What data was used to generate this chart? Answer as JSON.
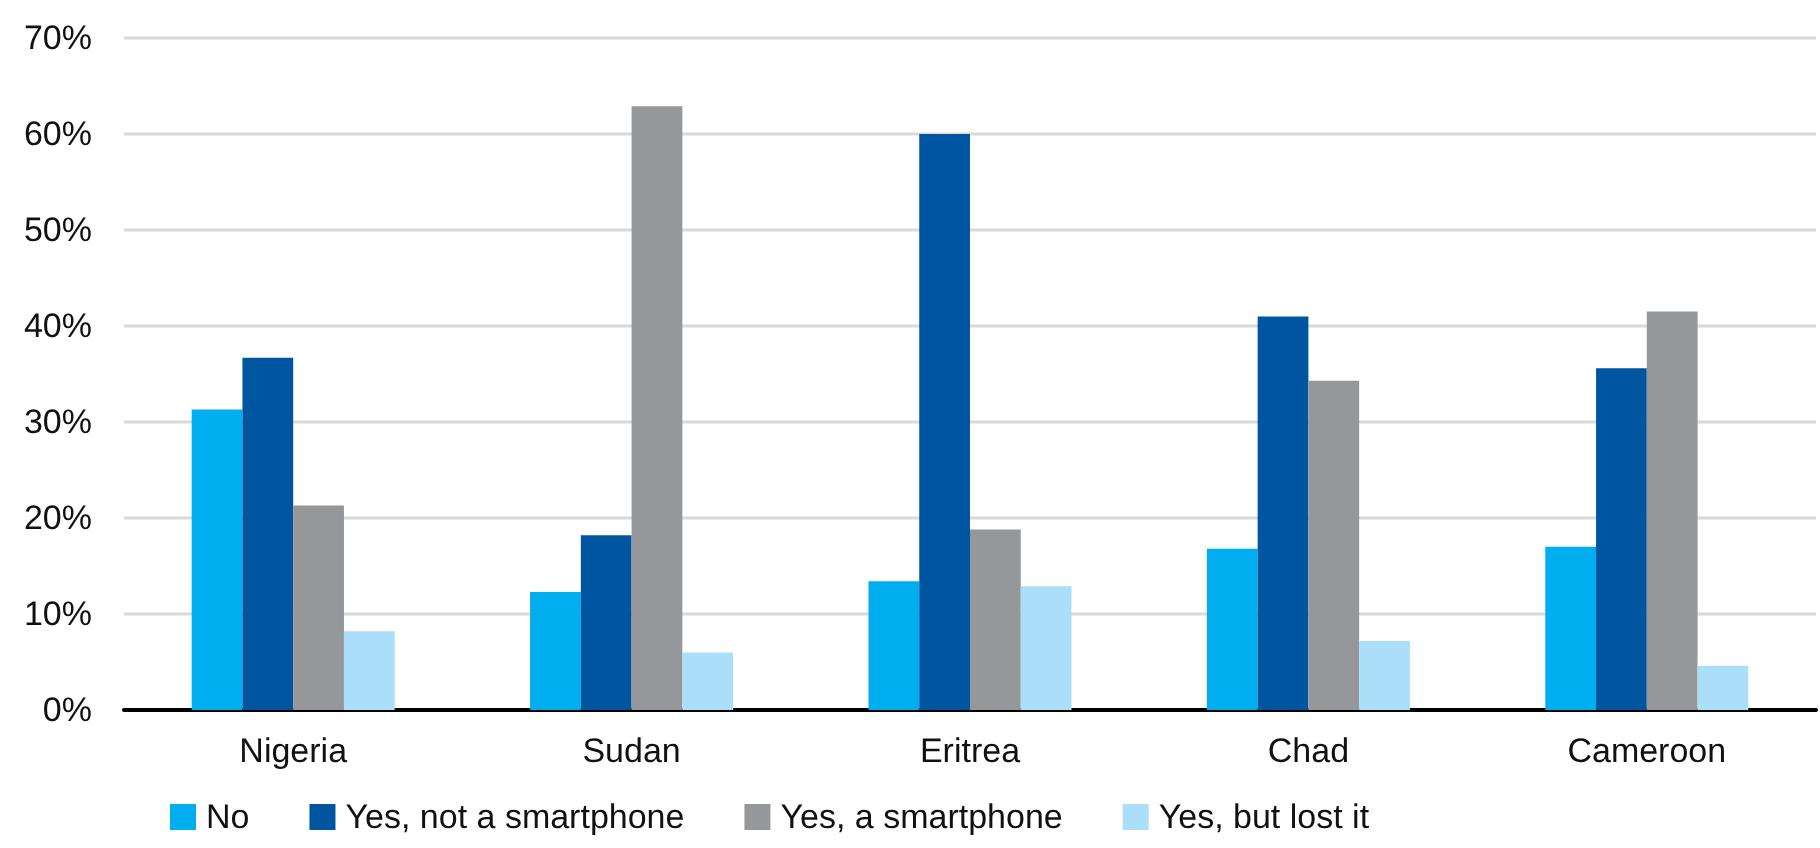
{
  "chart_data": {
    "type": "bar",
    "categories": [
      "Nigeria",
      "Sudan",
      "Eritrea",
      "Chad",
      "Cameroon"
    ],
    "series": [
      {
        "name": "No",
        "color": "#00aeef",
        "values": [
          31.3,
          12.3,
          13.4,
          16.8,
          17.0
        ]
      },
      {
        "name": "Yes, not a smartphone",
        "color": "#0055a0",
        "values": [
          36.7,
          18.2,
          60.0,
          41.0,
          35.6
        ]
      },
      {
        "name": "Yes, a smartphone",
        "color": "#96979b",
        "values": [
          21.3,
          62.9,
          18.8,
          34.3,
          41.5
        ]
      },
      {
        "name": "Yes, but lost it",
        "color": "#abdff9",
        "values": [
          8.2,
          6.0,
          12.9,
          7.2,
          4.6
        ]
      }
    ],
    "ylim": [
      0,
      70
    ],
    "yticks": [
      {
        "value": 0,
        "label": "0%"
      },
      {
        "value": 10,
        "label": "10%"
      },
      {
        "value": 20,
        "label": "20%"
      },
      {
        "value": 30,
        "label": "30%"
      },
      {
        "value": 40,
        "label": "40%"
      },
      {
        "value": 50,
        "label": "50%"
      },
      {
        "value": 60,
        "label": "60%"
      },
      {
        "value": 70,
        "label": "70%"
      }
    ],
    "grid": "y",
    "legend": "bottom"
  }
}
